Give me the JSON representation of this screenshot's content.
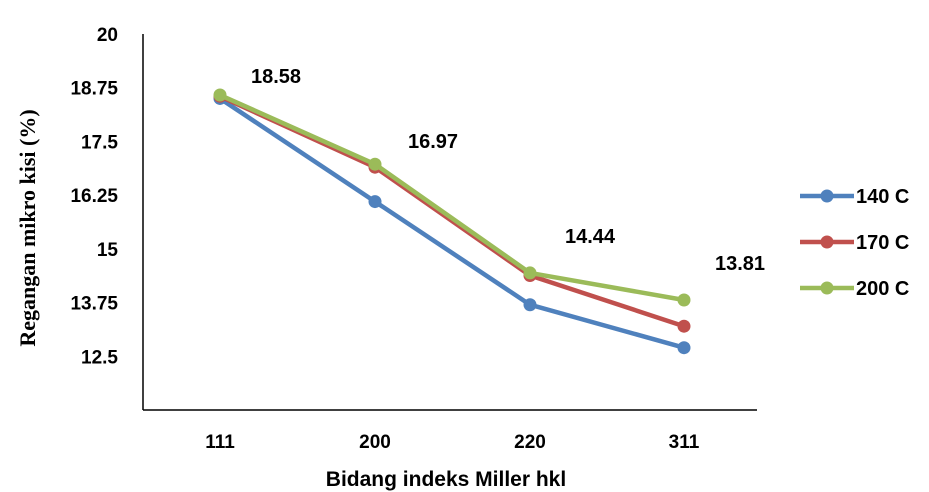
{
  "chart_data": {
    "type": "line",
    "categories": [
      "111",
      "200",
      "220",
      "311"
    ],
    "series": [
      {
        "name": "140 C",
        "color": "#4f81bd",
        "values": [
          18.5,
          16.1,
          13.7,
          12.7
        ]
      },
      {
        "name": "170 C",
        "color": "#c0504d",
        "values": [
          18.55,
          16.9,
          14.38,
          13.2
        ]
      },
      {
        "name": "200 C",
        "color": "#9bbb59",
        "values": [
          18.58,
          16.97,
          14.44,
          13.81
        ]
      }
    ],
    "data_labels": [
      {
        "category": "111",
        "text": "18.58"
      },
      {
        "category": "200",
        "text": "16.97"
      },
      {
        "category": "220",
        "text": "14.44"
      },
      {
        "category": "311",
        "text": "13.81"
      }
    ],
    "y_ticks": [
      "20",
      "18.75",
      "17.5",
      "16.25",
      "15",
      "13.75",
      "12.5"
    ],
    "ylim": [
      11.25,
      20
    ],
    "xlabel": "Bidang indeks Miller  hkl",
    "ylabel": "Regangan mikro kisi (%)",
    "grid": false,
    "legend_position": "right"
  }
}
